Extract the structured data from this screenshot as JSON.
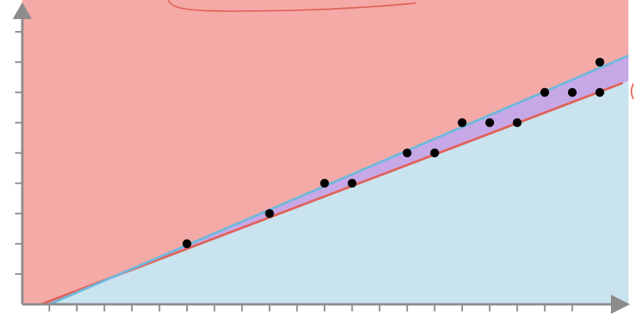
{
  "chart_data": {
    "type": "scatter",
    "title": "",
    "xlabel": "",
    "ylabel": "",
    "xlim": [
      0,
      21
    ],
    "ylim": [
      0,
      10
    ],
    "x_ticks": [
      1,
      2,
      3,
      4,
      5,
      6,
      7,
      8,
      9,
      10,
      11,
      12,
      13,
      14,
      15,
      16,
      17,
      18,
      19,
      20
    ],
    "y_ticks": [
      1,
      2,
      3,
      4,
      5,
      6,
      7,
      8,
      9
    ],
    "grid": false,
    "legend": "none",
    "points": [
      {
        "x": 6,
        "y": 2
      },
      {
        "x": 9,
        "y": 3
      },
      {
        "x": 11,
        "y": 4
      },
      {
        "x": 12,
        "y": 4
      },
      {
        "x": 14,
        "y": 5
      },
      {
        "x": 15,
        "y": 5
      },
      {
        "x": 16,
        "y": 6
      },
      {
        "x": 17,
        "y": 6
      },
      {
        "x": 18,
        "y": 6
      },
      {
        "x": 19,
        "y": 7
      },
      {
        "x": 20,
        "y": 7
      },
      {
        "x": 21,
        "y": 7
      },
      {
        "x": 21,
        "y": 8
      }
    ],
    "lines": [
      {
        "color": "#e0635a",
        "x": [
          0.7,
          21.8
        ],
        "y": [
          0,
          7.3
        ]
      },
      {
        "color": "#6fb8dc",
        "x": [
          1,
          22
        ],
        "y": [
          0,
          8.2
        ]
      }
    ],
    "regions": {
      "upper_color": "#f4aaa6",
      "lower_color": "#c9e3ef",
      "band_color": "#c7a8e6"
    },
    "colors": {
      "axis": "#8c8c8c",
      "points": "#000000",
      "annotation": "#e0635a"
    }
  }
}
